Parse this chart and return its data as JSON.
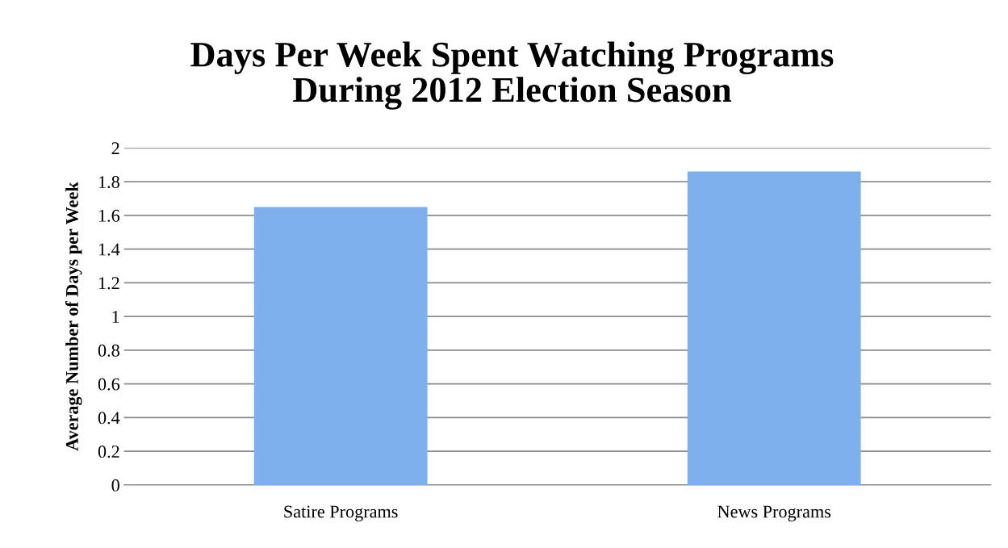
{
  "chart_data": {
    "type": "bar",
    "title": "Days Per Week Spent Watching Programs\nDuring 2012 Election Season",
    "ylabel": "Average Number of Days per Week",
    "categories": [
      "Satire Programs",
      "News Programs"
    ],
    "values": [
      1.65,
      1.86
    ],
    "color": "#7fb0ee",
    "ylim": [
      0,
      2
    ],
    "yticks": [
      0,
      0.2,
      0.4,
      0.6,
      0.8,
      1,
      1.2,
      1.4,
      1.6,
      1.8,
      2
    ],
    "grid": "y"
  }
}
